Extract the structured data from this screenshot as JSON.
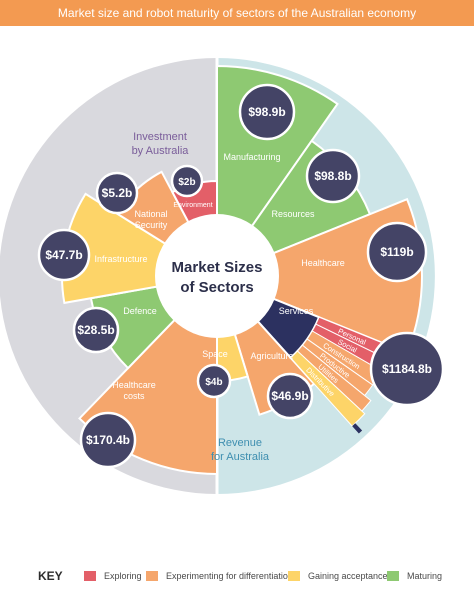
{
  "title": "Market size and robot maturity of sectors of the Australian economy",
  "colors": {
    "exploring": "#e35f68",
    "experimenting": "#f5a66c",
    "gaining": "#fdd468",
    "maturing": "#8ec972",
    "navy": "#2c3160",
    "bubble": "#444466",
    "investment_bg": "#d9d9de",
    "revenue_bg": "#cde5e8"
  },
  "chart_data": {
    "type": "pie",
    "title": "Market Sizes of Sectors",
    "region_labels": [
      "Investment by Australia",
      "Revenue for Australia"
    ],
    "slices": [
      {
        "sector": "Manufacturing",
        "value": "$98.9b",
        "maturity": "Maturing"
      },
      {
        "sector": "Resources",
        "value": "$98.8b",
        "maturity": "Maturing"
      },
      {
        "sector": "Healthcare",
        "value": "$119b",
        "maturity": "Experimenting for differentiation"
      },
      {
        "sector": "Services",
        "value": "$1184.8b",
        "maturity": "Mixed",
        "subsectors": [
          {
            "sector": "Personal",
            "maturity": "Exploring"
          },
          {
            "sector": "Social",
            "maturity": "Exploring"
          },
          {
            "sector": "Construction",
            "maturity": "Experimenting for differentiation"
          },
          {
            "sector": "Productive",
            "maturity": "Experimenting for differentiation"
          },
          {
            "sector": "Utilities",
            "maturity": "Experimenting for differentiation"
          },
          {
            "sector": "Distributive",
            "maturity": "Gaining acceptance"
          }
        ]
      },
      {
        "sector": "Agriculture",
        "value": "$46.9b",
        "maturity": "Experimenting for differentiation"
      },
      {
        "sector": "Space",
        "value": "$4b",
        "maturity": "Gaining acceptance"
      },
      {
        "sector": "Healthcare costs",
        "value": "$170.4b",
        "maturity": "Experimenting for differentiation"
      },
      {
        "sector": "Defence",
        "value": "$28.5b",
        "maturity": "Maturing"
      },
      {
        "sector": "Infrastructure",
        "value": "$47.7b",
        "maturity": "Gaining acceptance"
      },
      {
        "sector": "National Security",
        "value": "$5.2b",
        "maturity": "Experimenting for differentiation"
      },
      {
        "sector": "Environment",
        "value": "$2b",
        "maturity": "Exploring"
      }
    ],
    "legend": {
      "title": "KEY",
      "placement": "bottom",
      "items": [
        {
          "label": "Exploring",
          "color": "#e35f68"
        },
        {
          "label": "Experimenting for differentiation",
          "color": "#f5a66c"
        },
        {
          "label": "Gaining acceptance",
          "color": "#fdd468"
        },
        {
          "label": "Maturing",
          "color": "#8ec972"
        }
      ]
    }
  }
}
